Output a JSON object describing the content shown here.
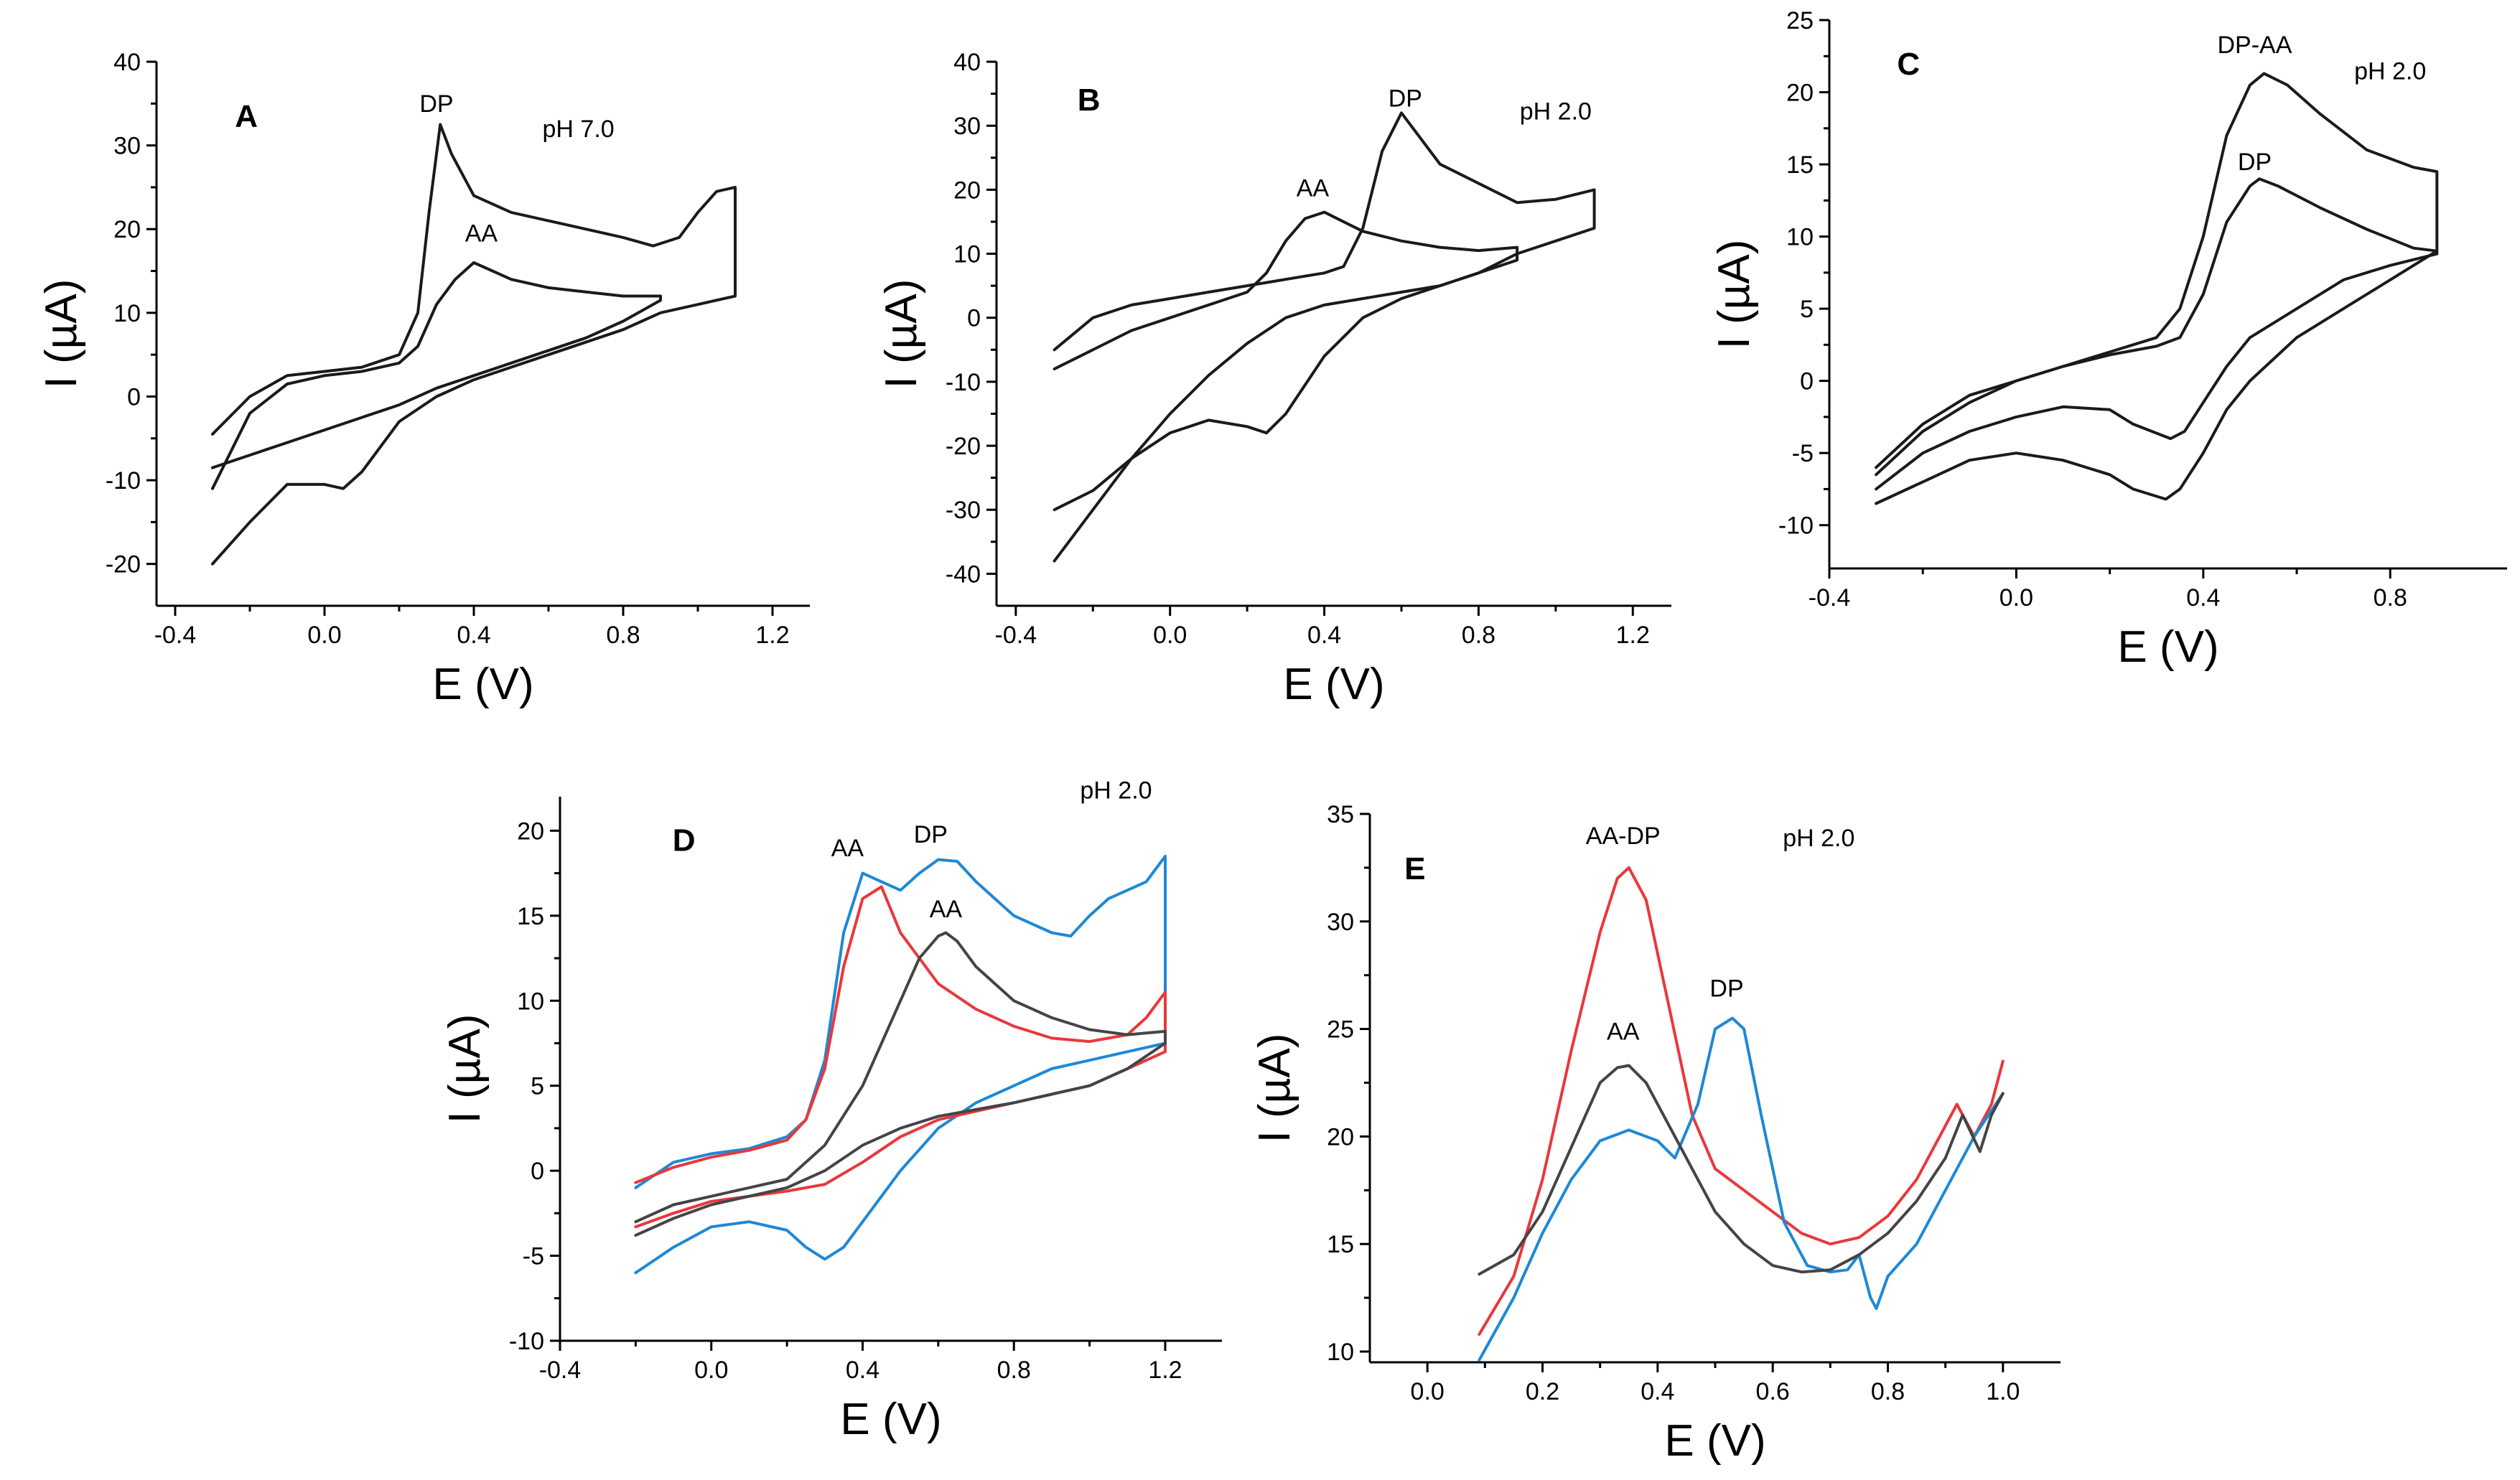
{
  "colors": {
    "black": "#1a1a1a",
    "gray": "#444444",
    "red": "#e8383d",
    "blue": "#1e88d6"
  },
  "chart_data": [
    {
      "panel": "A",
      "type": "line",
      "xlabel": "E (V)",
      "ylabel": "I (µA)",
      "xlim": [
        -0.45,
        1.3
      ],
      "ylim": [
        -25,
        40
      ],
      "xticks": [
        -0.4,
        0.0,
        0.4,
        0.8,
        1.2
      ],
      "xtick_labels": [
        "-0.4",
        "0.0",
        "0.4",
        "0.8",
        "1.2"
      ],
      "yticks": [
        -20,
        -10,
        0,
        10,
        20,
        30,
        40
      ],
      "ytick_labels": [
        "-20",
        "-10",
        "0",
        "10",
        "20",
        "30",
        "40"
      ],
      "annotations": [
        {
          "text": "DP",
          "x": 0.3,
          "y": 34
        },
        {
          "text": "AA",
          "x": 0.42,
          "y": 18.5
        },
        {
          "text": "pH 7.0",
          "x": 0.68,
          "y": 31
        }
      ],
      "series": [
        {
          "name": "DP",
          "color": "#1a1a1a",
          "x": [
            -0.3,
            -0.2,
            -0.1,
            0.0,
            0.1,
            0.2,
            0.25,
            0.28,
            0.31,
            0.34,
            0.4,
            0.5,
            0.6,
            0.7,
            0.8,
            0.88,
            0.95,
            1.0,
            1.05,
            1.1,
            1.1,
            1.0,
            0.9,
            0.8,
            0.7,
            0.6,
            0.5,
            0.4,
            0.3,
            0.2,
            0.1,
            0.05,
            0.0,
            -0.1,
            -0.2,
            -0.3
          ],
          "y": [
            -4.5,
            0,
            2.5,
            3,
            3.5,
            5,
            10,
            22,
            32.5,
            29,
            24,
            22,
            21,
            20,
            19,
            18,
            19,
            22,
            24.5,
            25,
            12,
            11,
            10,
            8,
            6.5,
            5,
            3.5,
            2,
            0,
            -3,
            -9,
            -11,
            -10.5,
            -10.5,
            -15,
            -20
          ]
        },
        {
          "name": "AA",
          "color": "#1a1a1a",
          "x": [
            -0.3,
            -0.2,
            -0.1,
            0.0,
            0.1,
            0.2,
            0.25,
            0.3,
            0.35,
            0.4,
            0.45,
            0.5,
            0.6,
            0.7,
            0.8,
            0.9,
            0.9,
            0.8,
            0.7,
            0.6,
            0.5,
            0.4,
            0.3,
            0.2,
            0.1,
            0.0,
            -0.1,
            -0.2,
            -0.3
          ],
          "y": [
            -11,
            -2,
            1.5,
            2.5,
            3,
            4,
            6,
            11,
            14,
            16,
            15,
            14,
            13,
            12.5,
            12,
            12,
            11.5,
            9,
            7,
            5.5,
            4,
            2.5,
            1,
            -1,
            -2.5,
            -4,
            -5.5,
            -7,
            -8.5
          ]
        }
      ]
    },
    {
      "panel": "B",
      "type": "line",
      "xlabel": "E (V)",
      "ylabel": "I (µA)",
      "xlim": [
        -0.45,
        1.3
      ],
      "ylim": [
        -45,
        40
      ],
      "xticks": [
        -0.4,
        0.0,
        0.4,
        0.8,
        1.2
      ],
      "xtick_labels": [
        "-0.4",
        "0.0",
        "0.4",
        "0.8",
        "1.2"
      ],
      "yticks": [
        -40,
        -30,
        -20,
        -10,
        0,
        10,
        20,
        30,
        40
      ],
      "ytick_labels": [
        "-40",
        "-30",
        "-20",
        "-10",
        "0",
        "10",
        "20",
        "30",
        "40"
      ],
      "annotations": [
        {
          "text": "DP",
          "x": 0.61,
          "y": 33
        },
        {
          "text": "AA",
          "x": 0.37,
          "y": 19
        },
        {
          "text": "pH 2.0",
          "x": 1.0,
          "y": 31
        }
      ],
      "series": [
        {
          "name": "DP",
          "color": "#1a1a1a",
          "x": [
            -0.3,
            -0.2,
            -0.1,
            0.0,
            0.1,
            0.2,
            0.3,
            0.4,
            0.45,
            0.5,
            0.55,
            0.6,
            0.65,
            0.7,
            0.8,
            0.9,
            1.0,
            1.1,
            1.1,
            1.0,
            0.9,
            0.8,
            0.7,
            0.6,
            0.5,
            0.4,
            0.3,
            0.25,
            0.2,
            0.1,
            0.0,
            -0.1,
            -0.2,
            -0.3
          ],
          "y": [
            -5,
            0,
            2,
            3,
            4,
            5,
            6,
            7,
            8,
            14,
            26,
            32,
            28,
            24,
            21,
            18,
            18.5,
            20,
            14,
            12,
            10,
            7,
            5,
            3,
            0,
            -6,
            -15,
            -18,
            -17,
            -16,
            -18,
            -22,
            -27,
            -30
          ]
        },
        {
          "name": "AA",
          "color": "#1a1a1a",
          "x": [
            -0.3,
            -0.2,
            -0.1,
            0.0,
            0.1,
            0.2,
            0.25,
            0.3,
            0.35,
            0.4,
            0.45,
            0.5,
            0.6,
            0.7,
            0.8,
            0.9,
            0.9,
            0.8,
            0.7,
            0.6,
            0.5,
            0.4,
            0.3,
            0.2,
            0.1,
            0.0,
            -0.1,
            -0.2,
            -0.3
          ],
          "y": [
            -8,
            -5,
            -2,
            0,
            2,
            4,
            7,
            12,
            15.5,
            16.5,
            15,
            13.5,
            12,
            11,
            10.5,
            11,
            9,
            7,
            5,
            4,
            3,
            2,
            0,
            -4,
            -9,
            -15,
            -22,
            -30,
            -38
          ]
        }
      ]
    },
    {
      "panel": "C",
      "type": "line",
      "xlabel": "E (V)",
      "ylabel": "I (µA)",
      "xlim": [
        -0.4,
        1.05
      ],
      "ylim": [
        -13,
        25
      ],
      "xticks": [
        -0.4,
        0.0,
        0.4,
        0.8
      ],
      "xtick_labels": [
        "-0.4",
        "0.0",
        "0.4",
        "0.8"
      ],
      "yticks": [
        -10,
        -5,
        0,
        5,
        10,
        15,
        20,
        25
      ],
      "ytick_labels": [
        "-10",
        "-5",
        "0",
        "5",
        "10",
        "15",
        "20",
        "25"
      ],
      "annotations": [
        {
          "text": "DP-AA",
          "x": 0.51,
          "y": 22.7
        },
        {
          "text": "DP",
          "x": 0.51,
          "y": 14.6
        },
        {
          "text": "pH 2.0",
          "x": 0.8,
          "y": 20.9
        }
      ],
      "series": [
        {
          "name": "DP-AA",
          "color": "#1a1a1a",
          "x": [
            -0.3,
            -0.2,
            -0.1,
            0.0,
            0.1,
            0.2,
            0.3,
            0.35,
            0.4,
            0.45,
            0.5,
            0.53,
            0.58,
            0.65,
            0.75,
            0.85,
            0.9,
            0.9,
            0.8,
            0.7,
            0.6,
            0.5,
            0.45,
            0.4,
            0.35,
            0.32,
            0.25,
            0.2,
            0.1,
            0.0,
            -0.1,
            -0.2,
            -0.3
          ],
          "y": [
            -6.5,
            -3.5,
            -1.5,
            0,
            1,
            2,
            3,
            5,
            10,
            17,
            20.5,
            21.3,
            20.5,
            18.5,
            16,
            14.8,
            14.5,
            9,
            7,
            5,
            3,
            0,
            -2,
            -5,
            -7.5,
            -8.2,
            -7.5,
            -6.5,
            -5.5,
            -5,
            -5.5,
            -7,
            -8.5
          ]
        },
        {
          "name": "DP",
          "color": "#1a1a1a",
          "x": [
            -0.3,
            -0.2,
            -0.1,
            0.0,
            0.1,
            0.2,
            0.3,
            0.35,
            0.4,
            0.45,
            0.5,
            0.52,
            0.56,
            0.65,
            0.75,
            0.85,
            0.9,
            0.9,
            0.8,
            0.7,
            0.6,
            0.5,
            0.45,
            0.4,
            0.36,
            0.33,
            0.25,
            0.2,
            0.1,
            0.0,
            -0.1,
            -0.2,
            -0.3
          ],
          "y": [
            -6,
            -3,
            -1,
            0,
            1,
            1.8,
            2.4,
            3,
            6,
            11,
            13.5,
            14,
            13.5,
            12,
            10.5,
            9.2,
            9,
            8.8,
            8,
            7,
            5,
            3,
            1,
            -1.5,
            -3.5,
            -4,
            -3,
            -2,
            -1.8,
            -2.5,
            -3.5,
            -5,
            -7.5
          ]
        }
      ]
    },
    {
      "panel": "D",
      "type": "line",
      "xlabel": "E (V)",
      "ylabel": "I (µA)",
      "xlim": [
        -0.4,
        1.35
      ],
      "ylim": [
        -10,
        22
      ],
      "xticks": [
        -0.4,
        0.0,
        0.4,
        0.8,
        1.2
      ],
      "xtick_labels": [
        "-0.4",
        "0.0",
        "0.4",
        "0.8",
        "1.2"
      ],
      "yticks": [
        -10,
        -5,
        0,
        5,
        10,
        15,
        20
      ],
      "ytick_labels": [
        "-10",
        "-5",
        "0",
        "5",
        "10",
        "15",
        "20"
      ],
      "annotations": [
        {
          "text": "AA",
          "x": 0.36,
          "y": 18.5
        },
        {
          "text": "DP",
          "x": 0.58,
          "y": 19.3
        },
        {
          "text": "AA",
          "x": 0.62,
          "y": 14.9
        },
        {
          "text": "pH 2.0",
          "x": 1.07,
          "y": 21.9
        }
      ],
      "series": [
        {
          "name": "blue",
          "color": "#1e88d6",
          "x": [
            -0.2,
            -0.1,
            0.0,
            0.1,
            0.2,
            0.25,
            0.3,
            0.35,
            0.4,
            0.45,
            0.5,
            0.55,
            0.6,
            0.65,
            0.7,
            0.8,
            0.9,
            0.95,
            1.0,
            1.05,
            1.1,
            1.15,
            1.2,
            1.2,
            1.1,
            1.0,
            0.9,
            0.8,
            0.7,
            0.6,
            0.5,
            0.4,
            0.35,
            0.3,
            0.25,
            0.2,
            0.1,
            0.0,
            -0.1,
            -0.2
          ],
          "y": [
            -1,
            0.5,
            1,
            1.3,
            2,
            3,
            6.5,
            14,
            17.5,
            17,
            16.5,
            17.5,
            18.3,
            18.2,
            17,
            15,
            14,
            13.8,
            15,
            16,
            16.5,
            17,
            18.5,
            7.5,
            7,
            6.5,
            6,
            5,
            4,
            2.5,
            0,
            -3,
            -4.5,
            -5.2,
            -4.5,
            -3.5,
            -3,
            -3.3,
            -4.5,
            -6
          ]
        },
        {
          "name": "red",
          "color": "#e8383d",
          "x": [
            -0.2,
            -0.1,
            0.0,
            0.1,
            0.2,
            0.25,
            0.3,
            0.35,
            0.4,
            0.45,
            0.5,
            0.6,
            0.7,
            0.8,
            0.9,
            1.0,
            1.1,
            1.15,
            1.2,
            1.2,
            1.1,
            1.0,
            0.9,
            0.8,
            0.7,
            0.6,
            0.5,
            0.4,
            0.3,
            0.2,
            0.1,
            0.0,
            -0.1,
            -0.2
          ],
          "y": [
            -0.7,
            0.2,
            0.8,
            1.2,
            1.8,
            3,
            6,
            12,
            16,
            16.7,
            14,
            11,
            9.5,
            8.5,
            7.8,
            7.6,
            8,
            9,
            10.5,
            7,
            6,
            5,
            4.5,
            4,
            3.5,
            3,
            2,
            0.5,
            -0.8,
            -1.2,
            -1.5,
            -1.8,
            -2.5,
            -3.3
          ]
        },
        {
          "name": "gray",
          "color": "#444444",
          "x": [
            -0.2,
            -0.1,
            0.0,
            0.1,
            0.2,
            0.3,
            0.4,
            0.5,
            0.55,
            0.6,
            0.62,
            0.65,
            0.7,
            0.8,
            0.9,
            1.0,
            1.1,
            1.2,
            1.2,
            1.1,
            1.0,
            0.9,
            0.8,
            0.7,
            0.6,
            0.5,
            0.4,
            0.3,
            0.2,
            0.1,
            0.0,
            -0.1,
            -0.2
          ],
          "y": [
            -3,
            -2,
            -1.5,
            -1,
            -0.5,
            1.5,
            5,
            10,
            12.5,
            13.8,
            14,
            13.5,
            12,
            10,
            9,
            8.3,
            8,
            8.2,
            7.5,
            6,
            5,
            4.5,
            4,
            3.6,
            3.2,
            2.5,
            1.5,
            0,
            -1,
            -1.5,
            -2,
            -2.8,
            -3.8
          ]
        }
      ]
    },
    {
      "panel": "E",
      "type": "line",
      "xlabel": "E (V)",
      "ylabel": "I (µA)",
      "xlim": [
        -0.1,
        1.1
      ],
      "ylim": [
        9.5,
        35
      ],
      "xticks": [
        0.0,
        0.2,
        0.4,
        0.6,
        0.8,
        1.0
      ],
      "xtick_labels": [
        "0.0",
        "0.2",
        "0.4",
        "0.6",
        "0.8",
        "1.0"
      ],
      "yticks": [
        10,
        15,
        20,
        25,
        30,
        35
      ],
      "ytick_labels": [
        "10",
        "15",
        "20",
        "25",
        "30",
        "35"
      ],
      "annotations": [
        {
          "text": "AA-DP",
          "x": 0.34,
          "y": 33.6
        },
        {
          "text": "DP",
          "x": 0.52,
          "y": 26.5
        },
        {
          "text": "AA",
          "x": 0.34,
          "y": 24.5
        },
        {
          "text": "pH 2.0",
          "x": 0.68,
          "y": 33.5
        }
      ],
      "series": [
        {
          "name": "red",
          "color": "#e8383d",
          "x": [
            0.09,
            0.15,
            0.2,
            0.25,
            0.3,
            0.33,
            0.35,
            0.38,
            0.42,
            0.46,
            0.5,
            0.55,
            0.6,
            0.65,
            0.7,
            0.75,
            0.8,
            0.85,
            0.9,
            0.92,
            0.95,
            0.98,
            1.0
          ],
          "y": [
            10.8,
            13.5,
            18,
            24,
            29.5,
            32,
            32.5,
            31,
            26,
            21,
            18.5,
            17.5,
            16.5,
            15.5,
            15,
            15.3,
            16.3,
            18,
            20.5,
            21.5,
            20,
            21.5,
            23.5
          ]
        },
        {
          "name": "blue",
          "color": "#1e88d6",
          "x": [
            0.09,
            0.15,
            0.2,
            0.25,
            0.3,
            0.35,
            0.4,
            0.43,
            0.47,
            0.5,
            0.53,
            0.55,
            0.58,
            0.62,
            0.66,
            0.7,
            0.73,
            0.75,
            0.77,
            0.78,
            0.8,
            0.85,
            0.9,
            0.95,
            1.0
          ],
          "y": [
            9.6,
            12.5,
            15.5,
            18,
            19.8,
            20.3,
            19.8,
            19,
            21.5,
            25,
            25.5,
            25,
            21,
            16,
            14,
            13.7,
            13.8,
            14.5,
            12.5,
            12,
            13.5,
            15,
            17.5,
            20,
            22
          ]
        },
        {
          "name": "gray",
          "color": "#444444",
          "x": [
            0.09,
            0.15,
            0.2,
            0.25,
            0.3,
            0.33,
            0.35,
            0.38,
            0.42,
            0.47,
            0.5,
            0.55,
            0.6,
            0.65,
            0.7,
            0.75,
            0.8,
            0.85,
            0.9,
            0.93,
            0.96,
            0.98,
            1.0
          ],
          "y": [
            13.6,
            14.5,
            16.5,
            19.5,
            22.5,
            23.2,
            23.3,
            22.5,
            20.5,
            18,
            16.5,
            15,
            14,
            13.7,
            13.8,
            14.5,
            15.5,
            17,
            19,
            21,
            19.3,
            21,
            22
          ]
        }
      ]
    }
  ]
}
